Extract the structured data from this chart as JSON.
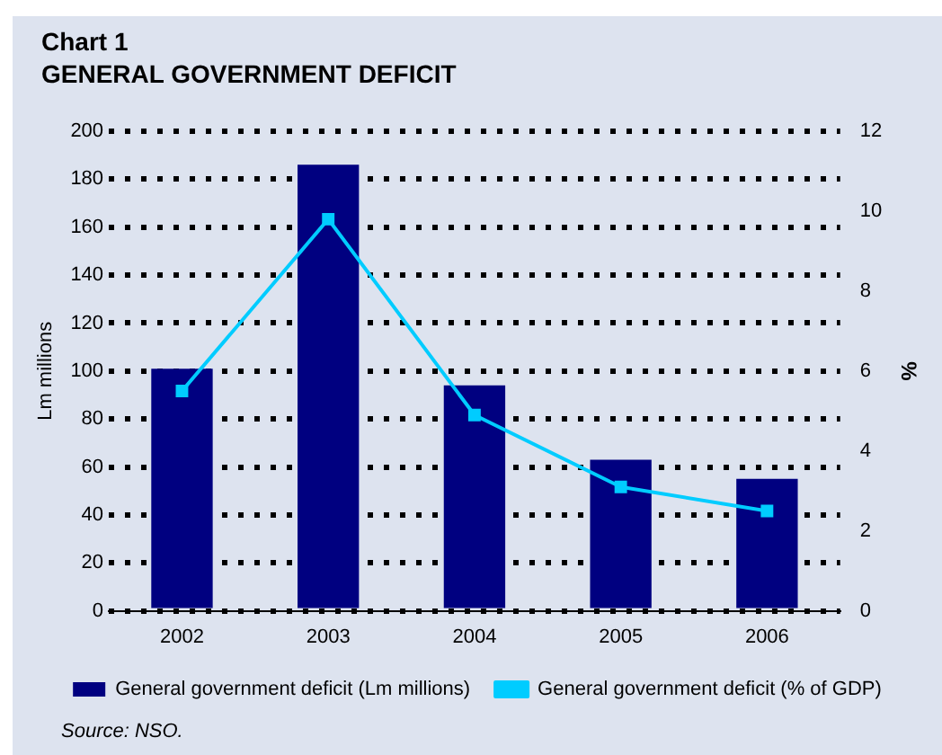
{
  "chart_data": {
    "type": "bar",
    "title": "Chart 1",
    "subtitle": "GENERAL GOVERNMENT DEFICIT",
    "ylabel": "Lm millions",
    "y2label": "%",
    "categories": [
      "2002",
      "2003",
      "2004",
      "2005",
      "2006"
    ],
    "series": [
      {
        "name": "General government deficit (Lm millions)",
        "color": "#000080",
        "values": [
          101,
          186,
          94,
          63,
          55
        ]
      },
      {
        "name": "General government deficit (% of GDP)",
        "type": "line",
        "axis": "y2",
        "color": "#00ccff",
        "marker": "square",
        "values": [
          5.5,
          9.8,
          4.9,
          3.1,
          2.5
        ]
      }
    ],
    "ylim": [
      0,
      200
    ],
    "yticks": [
      0,
      20,
      40,
      60,
      80,
      100,
      120,
      140,
      160,
      180,
      200
    ],
    "y2lim": [
      0,
      12
    ],
    "y2ticks": [
      0,
      2,
      4,
      6,
      8,
      10,
      12
    ],
    "grid": "y",
    "legend": "bottom",
    "annotations": [
      "Source: NSO."
    ]
  }
}
